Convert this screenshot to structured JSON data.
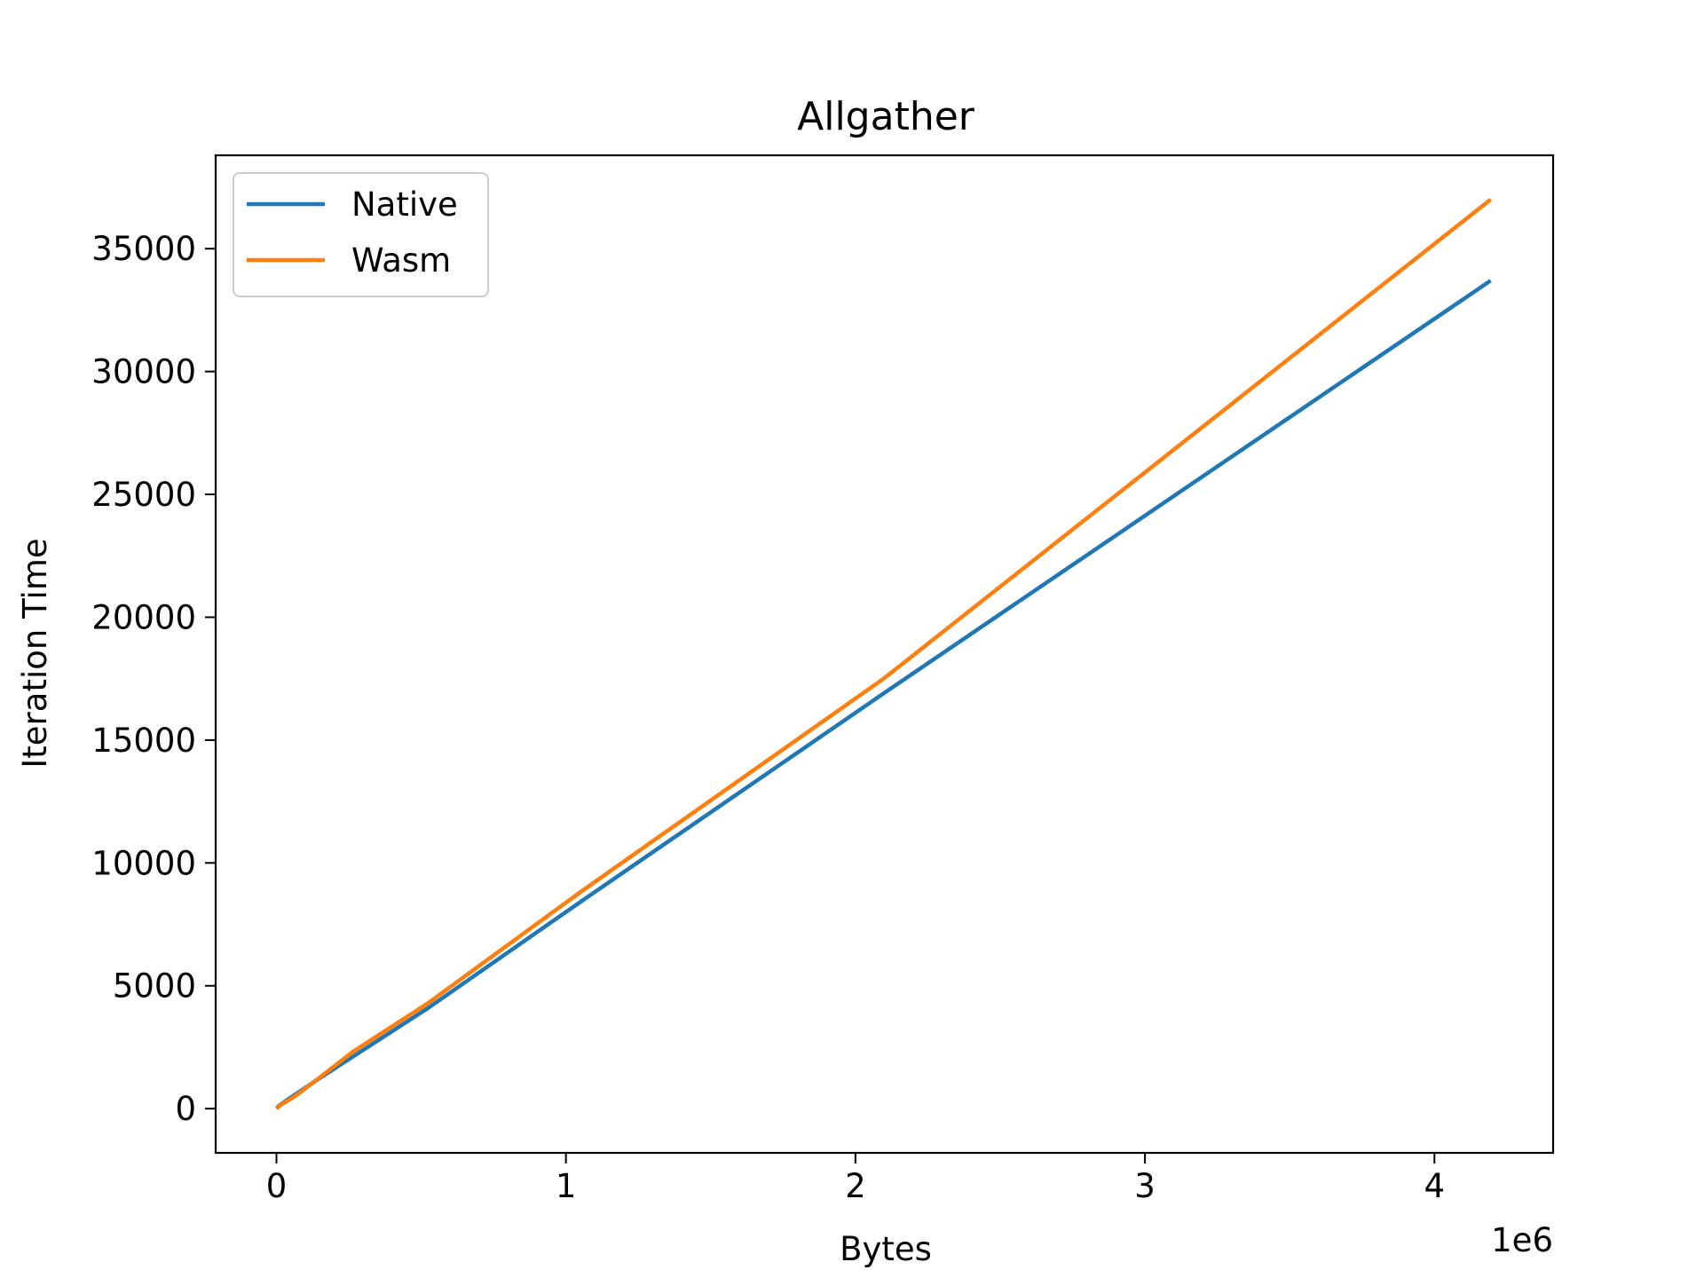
{
  "chart_data": {
    "type": "line",
    "title": "Allgather",
    "xlabel": "Bytes",
    "ylabel": "Iteration Time",
    "x_offset_label": "1e6",
    "xlim": [
      -210000,
      4410000
    ],
    "ylim": [
      -1800,
      38800
    ],
    "x_ticks": [
      0,
      1000000,
      2000000,
      3000000,
      4000000
    ],
    "x_tick_labels": [
      "0",
      "1",
      "2",
      "3",
      "4"
    ],
    "y_ticks": [
      0,
      5000,
      10000,
      15000,
      20000,
      25000,
      30000,
      35000
    ],
    "y_tick_labels": [
      "0",
      "5000",
      "10000",
      "15000",
      "20000",
      "25000",
      "30000",
      "35000"
    ],
    "grid": false,
    "legend_position": "top-left",
    "series": [
      {
        "name": "Native",
        "color": "#1f77b4",
        "points": [
          [
            0,
            20
          ],
          [
            4096,
            60
          ],
          [
            8192,
            110
          ],
          [
            16384,
            180
          ],
          [
            32768,
            320
          ],
          [
            65536,
            580
          ],
          [
            131072,
            1100
          ],
          [
            262144,
            2100
          ],
          [
            524288,
            4100
          ],
          [
            1048576,
            8400
          ],
          [
            2097152,
            16900
          ],
          [
            4194304,
            33700
          ]
        ]
      },
      {
        "name": "Wasm",
        "color": "#ff7f0e",
        "points": [
          [
            0,
            0
          ],
          [
            4096,
            40
          ],
          [
            8192,
            90
          ],
          [
            16384,
            160
          ],
          [
            32768,
            280
          ],
          [
            65536,
            520
          ],
          [
            131072,
            1100
          ],
          [
            262144,
            2300
          ],
          [
            524288,
            4300
          ],
          [
            1048576,
            8800
          ],
          [
            2097152,
            17500
          ],
          [
            4194304,
            37000
          ]
        ]
      }
    ]
  }
}
